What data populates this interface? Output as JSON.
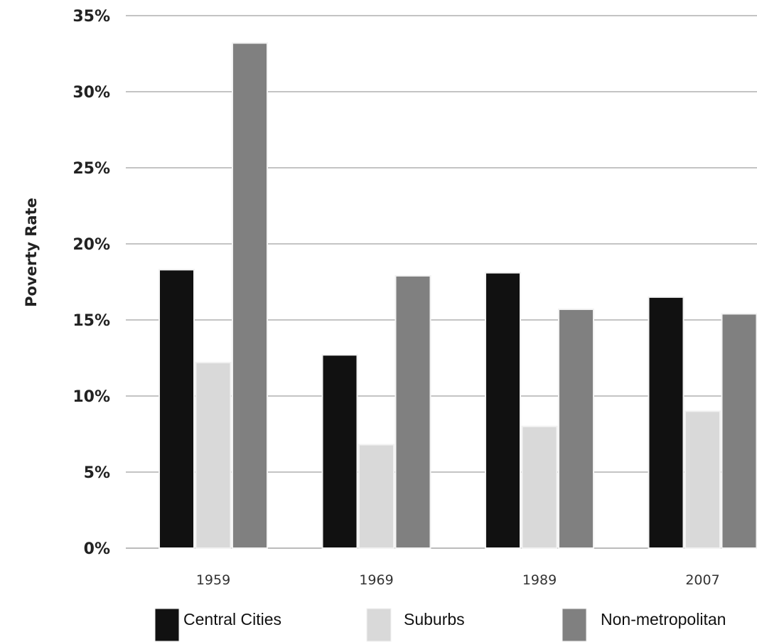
{
  "chart_data": {
    "type": "bar",
    "title": "",
    "xlabel": "",
    "ylabel": "Poverty Rate",
    "ylim": [
      0,
      0.35
    ],
    "yticks": [
      0,
      0.05,
      0.1,
      0.15,
      0.2,
      0.25,
      0.3,
      0.35
    ],
    "ytick_labels": [
      "0%",
      "5%",
      "10%",
      "15%",
      "20%",
      "25%",
      "30%",
      "35%"
    ],
    "categories": [
      "1959",
      "1969",
      "1989",
      "2007"
    ],
    "grid": true,
    "legend_position": "bottom",
    "series": [
      {
        "name": "Central Cities",
        "color": "#111111",
        "values": [
          0.183,
          0.127,
          0.181,
          0.165
        ]
      },
      {
        "name": "Suburbs",
        "color": "#d9d9d9",
        "values": [
          0.122,
          0.068,
          0.08,
          0.09
        ]
      },
      {
        "name": "Non-metropolitan",
        "color": "#808080",
        "values": [
          0.332,
          0.179,
          0.157,
          0.154
        ]
      }
    ]
  }
}
